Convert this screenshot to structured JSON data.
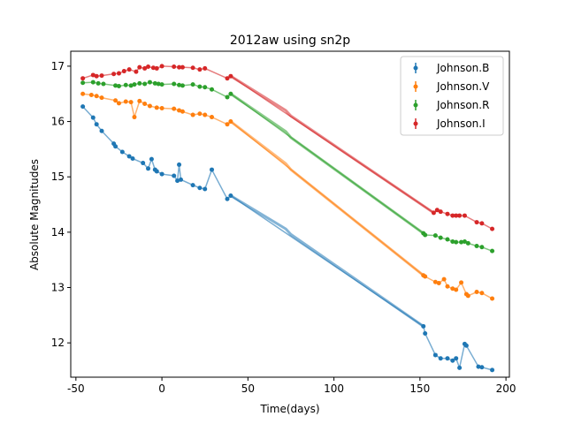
{
  "chart_data": {
    "type": "line",
    "title": "2012aw using sn2p",
    "xlabel": "Time(days)",
    "ylabel": "Absolute Magnitudes",
    "xlim": [
      -53,
      202
    ],
    "ylim": [
      11.38,
      17.27
    ],
    "xticks": [
      -50,
      0,
      50,
      100,
      150,
      200
    ],
    "yticks": [
      12,
      13,
      14,
      15,
      16,
      17
    ],
    "legend_position": "top-right",
    "grid": false,
    "series": [
      {
        "name": "Johnson.B",
        "color": "#1f77b4",
        "points": [
          [
            -46,
            16.27
          ],
          [
            -40,
            16.07
          ],
          [
            -38,
            15.95
          ],
          [
            -35,
            15.83
          ],
          [
            -28,
            15.6
          ],
          [
            -27,
            15.55
          ],
          [
            -23,
            15.45
          ],
          [
            -19,
            15.37
          ],
          [
            -17,
            15.33
          ],
          [
            -11,
            15.25
          ],
          [
            -8,
            15.15
          ],
          [
            -6,
            15.32
          ],
          [
            -4,
            15.13
          ],
          [
            -3,
            15.1
          ],
          [
            0,
            15.05
          ],
          [
            7,
            15.02
          ],
          [
            9,
            14.93
          ],
          [
            10,
            15.22
          ],
          [
            11,
            14.95
          ],
          [
            18,
            14.85
          ],
          [
            22,
            14.8
          ],
          [
            25,
            14.78
          ],
          [
            29,
            15.13
          ],
          [
            38,
            14.6
          ],
          [
            40,
            14.66
          ],
          [
            152,
            12.3
          ],
          [
            153,
            12.17
          ],
          [
            159,
            11.78
          ],
          [
            162,
            11.72
          ],
          [
            166,
            11.72
          ],
          [
            169,
            11.68
          ],
          [
            171,
            11.72
          ],
          [
            173,
            11.55
          ],
          [
            176,
            11.98
          ],
          [
            177,
            11.95
          ],
          [
            184,
            11.57
          ],
          [
            186,
            11.56
          ],
          [
            192,
            11.51
          ]
        ],
        "fit": [
          [
            40,
            14.66
          ],
          [
            72,
            14.06
          ],
          [
            75,
            13.96
          ],
          [
            152,
            12.3
          ]
        ]
      },
      {
        "name": "Johnson.V",
        "color": "#ff7f0e",
        "points": [
          [
            -46,
            16.5
          ],
          [
            -41,
            16.48
          ],
          [
            -38,
            16.46
          ],
          [
            -35,
            16.43
          ],
          [
            -27,
            16.38
          ],
          [
            -25,
            16.33
          ],
          [
            -21,
            16.36
          ],
          [
            -18,
            16.35
          ],
          [
            -16,
            16.08
          ],
          [
            -13,
            16.37
          ],
          [
            -10,
            16.32
          ],
          [
            -7,
            16.28
          ],
          [
            -3,
            16.25
          ],
          [
            0,
            16.24
          ],
          [
            7,
            16.23
          ],
          [
            10,
            16.2
          ],
          [
            12,
            16.18
          ],
          [
            18,
            16.12
          ],
          [
            22,
            16.14
          ],
          [
            25,
            16.12
          ],
          [
            29,
            16.08
          ],
          [
            38,
            15.95
          ],
          [
            40,
            16.0
          ],
          [
            152,
            13.22
          ],
          [
            153,
            13.2
          ],
          [
            159,
            13.1
          ],
          [
            161,
            13.08
          ],
          [
            164,
            13.15
          ],
          [
            166,
            13.02
          ],
          [
            169,
            12.98
          ],
          [
            171,
            12.96
          ],
          [
            174,
            13.09
          ],
          [
            177,
            12.88
          ],
          [
            178,
            12.85
          ],
          [
            183,
            12.92
          ],
          [
            186,
            12.9
          ],
          [
            192,
            12.8
          ]
        ],
        "fit": [
          [
            40,
            16.0
          ],
          [
            72,
            15.24
          ],
          [
            75,
            15.13
          ],
          [
            152,
            13.22
          ]
        ]
      },
      {
        "name": "Johnson.R",
        "color": "#2ca02c",
        "points": [
          [
            -46,
            16.7
          ],
          [
            -40,
            16.71
          ],
          [
            -37,
            16.69
          ],
          [
            -34,
            16.68
          ],
          [
            -27,
            16.65
          ],
          [
            -25,
            16.64
          ],
          [
            -21,
            16.66
          ],
          [
            -18,
            16.65
          ],
          [
            -16,
            16.67
          ],
          [
            -13,
            16.69
          ],
          [
            -10,
            16.68
          ],
          [
            -7,
            16.71
          ],
          [
            -4,
            16.69
          ],
          [
            -2,
            16.68
          ],
          [
            0,
            16.67
          ],
          [
            7,
            16.68
          ],
          [
            10,
            16.66
          ],
          [
            12,
            16.65
          ],
          [
            18,
            16.67
          ],
          [
            22,
            16.63
          ],
          [
            25,
            16.62
          ],
          [
            29,
            16.58
          ],
          [
            38,
            16.44
          ],
          [
            40,
            16.5
          ],
          [
            152,
            13.98
          ],
          [
            153,
            13.95
          ],
          [
            159,
            13.94
          ],
          [
            162,
            13.9
          ],
          [
            166,
            13.87
          ],
          [
            169,
            13.83
          ],
          [
            171,
            13.82
          ],
          [
            174,
            13.82
          ],
          [
            176,
            13.83
          ],
          [
            178,
            13.8
          ],
          [
            183,
            13.75
          ],
          [
            186,
            13.73
          ],
          [
            192,
            13.66
          ]
        ],
        "fit": [
          [
            40,
            16.5
          ],
          [
            72,
            15.82
          ],
          [
            75,
            15.71
          ],
          [
            152,
            13.98
          ]
        ]
      },
      {
        "name": "Johnson.I",
        "color": "#d62728",
        "points": [
          [
            -46,
            16.78
          ],
          [
            -40,
            16.84
          ],
          [
            -38,
            16.82
          ],
          [
            -35,
            16.83
          ],
          [
            -28,
            16.86
          ],
          [
            -25,
            16.87
          ],
          [
            -22,
            16.91
          ],
          [
            -19,
            16.94
          ],
          [
            -15,
            16.9
          ],
          [
            -13,
            16.98
          ],
          [
            -10,
            16.96
          ],
          [
            -8,
            16.99
          ],
          [
            -5,
            16.97
          ],
          [
            -3,
            16.96
          ],
          [
            0,
            17.0
          ],
          [
            7,
            16.99
          ],
          [
            10,
            16.98
          ],
          [
            12,
            16.98
          ],
          [
            18,
            16.97
          ],
          [
            22,
            16.94
          ],
          [
            25,
            16.96
          ],
          [
            38,
            16.78
          ],
          [
            40,
            16.82
          ],
          [
            158,
            14.35
          ],
          [
            160,
            14.4
          ],
          [
            162,
            14.37
          ],
          [
            166,
            14.33
          ],
          [
            169,
            14.3
          ],
          [
            171,
            14.3
          ],
          [
            173,
            14.3
          ],
          [
            176,
            14.3
          ],
          [
            183,
            14.18
          ],
          [
            186,
            14.16
          ],
          [
            192,
            14.06
          ]
        ],
        "fit": [
          [
            40,
            16.82
          ],
          [
            72,
            16.2
          ],
          [
            75,
            16.1
          ],
          [
            158,
            14.35
          ]
        ]
      }
    ]
  }
}
